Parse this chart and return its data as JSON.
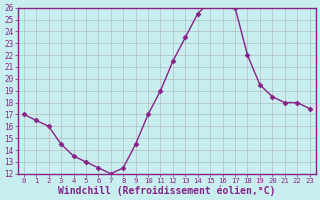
{
  "x": [
    0,
    1,
    2,
    3,
    4,
    5,
    6,
    7,
    8,
    9,
    10,
    11,
    12,
    13,
    14,
    15,
    16,
    17,
    18,
    19,
    20,
    21,
    22,
    23
  ],
  "y": [
    17,
    16.5,
    16,
    14.5,
    13.5,
    13,
    12.5,
    12,
    12.5,
    14.5,
    17,
    19,
    21.5,
    23.5,
    25.5,
    26.5,
    26.5,
    26,
    22,
    19.5,
    18.5,
    18,
    18,
    17.5
  ],
  "line_color": "#882288",
  "marker": "D",
  "markersize": 2.5,
  "linewidth": 1.0,
  "xlabel": "Windchill (Refroidissement éolien,°C)",
  "xlabel_fontsize": 7,
  "ylim": [
    12,
    26
  ],
  "xlim": [
    -0.5,
    23.5
  ],
  "yticks": [
    12,
    13,
    14,
    15,
    16,
    17,
    18,
    19,
    20,
    21,
    22,
    23,
    24,
    25,
    26
  ],
  "xticks": [
    0,
    1,
    2,
    3,
    4,
    5,
    6,
    7,
    8,
    9,
    10,
    11,
    12,
    13,
    14,
    15,
    16,
    17,
    18,
    19,
    20,
    21,
    22,
    23
  ],
  "plot_bg_color": "#c8eef0",
  "fig_bg_color": "#c8eef0",
  "grid_color": "#aaaaaa",
  "tick_color": "#882288",
  "border_color": "#882288",
  "xlabel_color": "#882288",
  "bottom_bar_color": "#882288"
}
